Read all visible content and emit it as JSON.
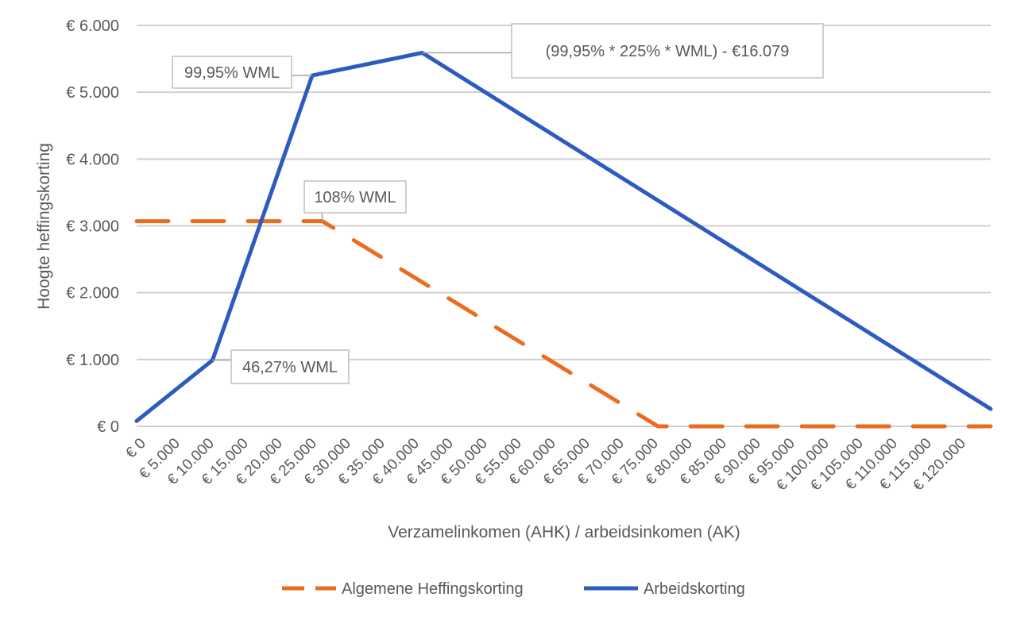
{
  "chart_data": {
    "type": "line",
    "title": "",
    "xlabel": "Verzamelinkomen (AHK) / arbeidsinkomen (AK)",
    "ylabel": "Hoogte heffingskorting",
    "xlim": [
      0,
      125000
    ],
    "ylim": [
      0,
      6000
    ],
    "grid": "horizontal",
    "legend": "bottom",
    "xticks": [
      0,
      5000,
      10000,
      15000,
      20000,
      25000,
      30000,
      35000,
      40000,
      45000,
      50000,
      55000,
      60000,
      65000,
      70000,
      75000,
      80000,
      85000,
      90000,
      95000,
      100000,
      105000,
      110000,
      115000,
      120000
    ],
    "xtick_labels": [
      "€ 0",
      "€ 5.000",
      "€ 10.000",
      "€ 15.000",
      "€ 20.000",
      "€ 25.000",
      "€ 30.000",
      "€ 35.000",
      "€ 40.000",
      "€ 45.000",
      "€ 50.000",
      "€ 55.000",
      "€ 60.000",
      "€ 65.000",
      "€ 70.000",
      "€ 75.000",
      "€ 80.000",
      "€ 85.000",
      "€ 90.000",
      "€ 95.000",
      "€ 100.000",
      "€ 105.000",
      "€ 110.000",
      "€ 115.000",
      "€ 120.000"
    ],
    "yticks": [
      0,
      1000,
      2000,
      3000,
      4000,
      5000,
      6000
    ],
    "ytick_labels": [
      "€ 0",
      "€ 1.000",
      "€ 2.000",
      "€ 3.000",
      "€ 4.000",
      "€ 5.000",
      "€ 6.000"
    ],
    "series": [
      {
        "name": "Algemene Heffingskorting",
        "color": "#ED6B21",
        "dash": "dashed",
        "points": [
          [
            0,
            3070
          ],
          [
            27200,
            3070
          ],
          [
            76300,
            0
          ],
          [
            125000,
            0
          ]
        ]
      },
      {
        "name": "Arbeidskorting",
        "color": "#2E5BBF",
        "dash": "solid",
        "points": [
          [
            0,
            80
          ],
          [
            11100,
            990
          ],
          [
            25700,
            5250
          ],
          [
            41800,
            5590
          ],
          [
            125000,
            260
          ]
        ]
      }
    ],
    "annotations": [
      {
        "text": "46,27% WML",
        "x": 11100,
        "y": 990
      },
      {
        "text": "99,95% WML",
        "x": 25700,
        "y": 5250
      },
      {
        "text": "108% WML",
        "x": 27200,
        "y": 3070
      },
      {
        "text": "(99,95% * 225% * WML) - €16.079",
        "x": 41800,
        "y": 5590
      }
    ]
  }
}
